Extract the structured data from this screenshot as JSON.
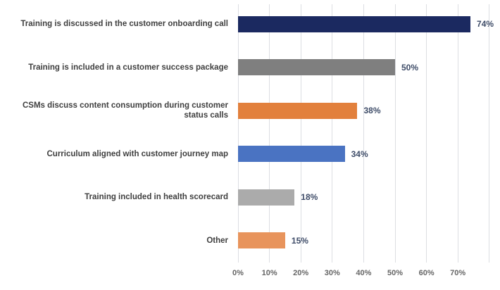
{
  "chart_data": {
    "type": "bar",
    "orientation": "horizontal",
    "title": "",
    "xlabel": "",
    "ylabel": "",
    "grid": true,
    "legend": false,
    "xlim": [
      0,
      80
    ],
    "categories": [
      "Training is discussed in the customer onboarding call",
      "Training is included in a customer success package",
      "CSMs discuss content consumption during customer status calls",
      "Curriculum aligned with customer journey map",
      "Training included in health scorecard",
      "Other"
    ],
    "values": [
      74,
      50,
      38,
      34,
      18,
      15
    ],
    "value_labels": [
      "74%",
      "50%",
      "38%",
      "34%",
      "18%",
      "15%"
    ],
    "bar_colors": [
      "#1b2960",
      "#7f7f7f",
      "#e2803c",
      "#4a73c2",
      "#ababab",
      "#e8945c"
    ],
    "x_tick_values": [
      0,
      10,
      20,
      30,
      40,
      50,
      60,
      70
    ],
    "x_tick_labels": [
      "0%",
      "10%",
      "20%",
      "30%",
      "40%",
      "50%",
      "60%",
      "70%"
    ],
    "gridline_values": [
      0,
      10,
      20,
      30,
      40,
      50,
      60,
      70,
      80
    ],
    "colors": {
      "gridline": "#dcdee2",
      "category_label": "#3f3f3f",
      "value_label": "#3e4c68",
      "axis_label": "#666666",
      "background": "#ffffff"
    }
  }
}
